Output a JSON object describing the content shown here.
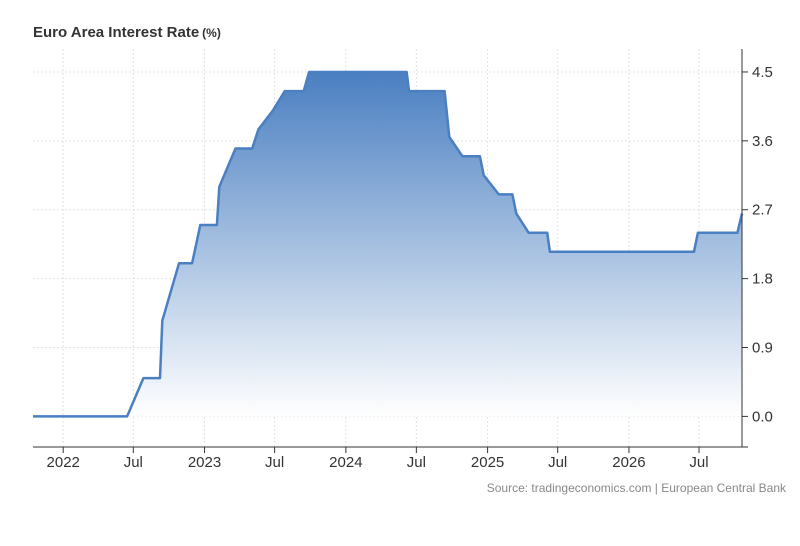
{
  "chart_data": {
    "type": "area",
    "title": "Euro Area Interest Rate",
    "title_unit": "(%)",
    "source": "Source: tradingeconomics.com | European Central Bank",
    "colors": {
      "line": "#4a7fc1",
      "fill_top": "#4a7fc1",
      "fill_bottom": "#ffffff",
      "grid": "#e3e3e3",
      "axis": "#333333",
      "text": "#333333"
    },
    "grid": true,
    "y_axis_position": "right",
    "ylim": [
      -0.4,
      4.8
    ],
    "y_ticks": [
      0.0,
      0.9,
      1.8,
      2.7,
      3.6,
      4.5
    ],
    "y_tick_labels": [
      "0.0",
      "0.9",
      "1.8",
      "2.7",
      "3.6",
      "4.5"
    ],
    "xlim": [
      "2021-10-15",
      "2026-10-20"
    ],
    "x_ticks": [
      "2022-01-01",
      "2022-07-01",
      "2023-01-01",
      "2023-07-01",
      "2024-01-01",
      "2024-07-01",
      "2025-01-01",
      "2025-07-01",
      "2026-01-01",
      "2026-07-01"
    ],
    "x_tick_labels": [
      "2022",
      "Jul",
      "2023",
      "Jul",
      "2024",
      "Jul",
      "2025",
      "Jul",
      "2026",
      "Jul"
    ],
    "series": [
      {
        "points": [
          [
            "2021-10-15",
            0.0
          ],
          [
            "2022-06-15",
            0.0
          ],
          [
            "2022-07-27",
            0.5
          ],
          [
            "2022-09-08",
            0.5
          ],
          [
            "2022-09-14",
            1.25
          ],
          [
            "2022-10-27",
            2.0
          ],
          [
            "2022-11-30",
            2.0
          ],
          [
            "2022-12-21",
            2.5
          ],
          [
            "2023-02-02",
            2.5
          ],
          [
            "2023-02-08",
            3.0
          ],
          [
            "2023-03-22",
            3.5
          ],
          [
            "2023-05-04",
            3.5
          ],
          [
            "2023-05-20",
            3.75
          ],
          [
            "2023-06-27",
            4.0
          ],
          [
            "2023-07-27",
            4.25
          ],
          [
            "2023-09-14",
            4.25
          ],
          [
            "2023-09-28",
            4.5
          ],
          [
            "2024-06-06",
            4.5
          ],
          [
            "2024-06-12",
            4.25
          ],
          [
            "2024-09-12",
            4.25
          ],
          [
            "2024-09-24",
            3.65
          ],
          [
            "2024-10-28",
            3.4
          ],
          [
            "2024-12-12",
            3.4
          ],
          [
            "2024-12-22",
            3.15
          ],
          [
            "2025-01-30",
            2.9
          ],
          [
            "2025-03-06",
            2.9
          ],
          [
            "2025-03-16",
            2.65
          ],
          [
            "2025-04-17",
            2.4
          ],
          [
            "2025-06-04",
            2.4
          ],
          [
            "2025-06-11",
            2.15
          ],
          [
            "2026-06-18",
            2.15
          ],
          [
            "2026-06-28",
            2.4
          ],
          [
            "2026-10-08",
            2.4
          ],
          [
            "2026-10-20",
            2.65
          ]
        ]
      }
    ]
  }
}
